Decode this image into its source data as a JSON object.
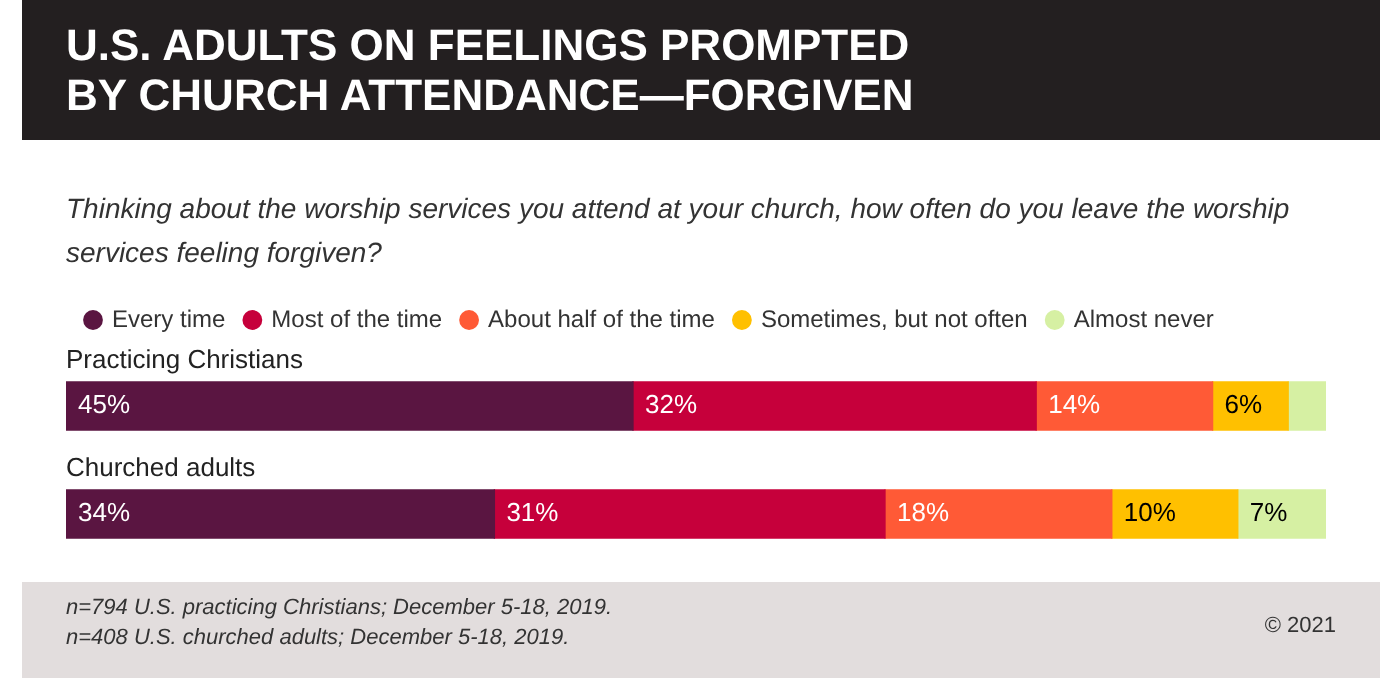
{
  "chart_data": {
    "type": "bar",
    "orientation": "horizontal",
    "stacked": true,
    "title": "U.S. ADULTS ON FEELINGS PROMPTED BY CHURCH ATTENDANCE—FORGIVEN",
    "subtitle": "Thinking about the worship services you attend at your church, how often do you leave the worship services feeling forgiven?",
    "categories": [
      "Practicing Christians",
      "Churched adults"
    ],
    "series": [
      {
        "name": "Every time",
        "color": "#5a1541",
        "values": [
          45,
          34
        ],
        "value_labels": [
          "45%",
          "34%"
        ]
      },
      {
        "name": "Most of the time",
        "color": "#c6003b",
        "values": [
          32,
          31
        ],
        "value_labels": [
          "32%",
          "31%"
        ]
      },
      {
        "name": "About half of the time",
        "color": "#ff5a36",
        "values": [
          14,
          18
        ],
        "value_labels": [
          "14%",
          "18%"
        ]
      },
      {
        "name": "Sometimes, but not often",
        "color": "#ffc000",
        "values": [
          6,
          10
        ],
        "value_labels": [
          "6%",
          "10%"
        ]
      },
      {
        "name": "Almost never",
        "color": "#d6f0a3",
        "values": [
          3,
          7
        ],
        "value_labels": [
          null,
          "7%"
        ]
      }
    ],
    "xlim": [
      0,
      100
    ],
    "legend": "top left",
    "tick_labels": false,
    "annotations": [
      "n=794 U.S. practicing Christians; December 5-18, 2019.",
      "n=408 U.S. churched adults; December 5-18, 2019.",
      "© 2021"
    ]
  }
}
